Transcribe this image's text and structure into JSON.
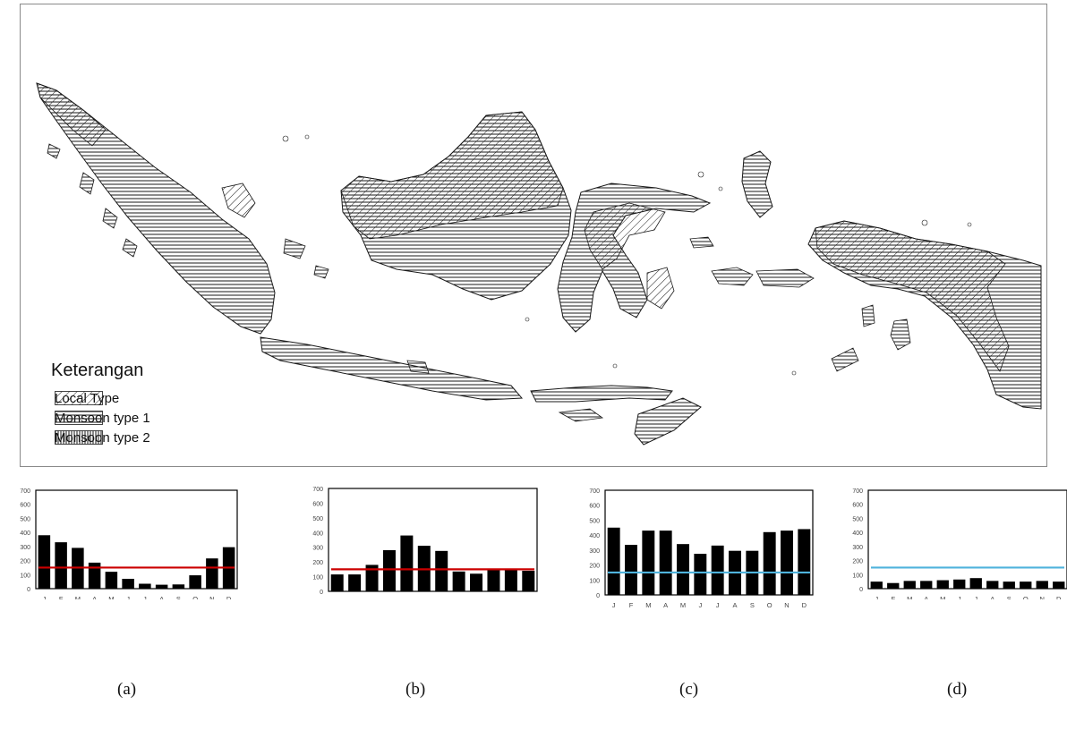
{
  "map": {
    "legend": {
      "title": "Keterangan",
      "items": [
        {
          "label": "Local Type",
          "pattern": "diagonal"
        },
        {
          "label": "Monsoon type 1",
          "pattern": "horizontal"
        },
        {
          "label": "Monsoon type 2",
          "pattern": "vertical"
        }
      ]
    }
  },
  "colors": {
    "bar": "#000000",
    "red_line": "#cc0000",
    "blue_line": "#4fb3dc",
    "map_ink": "#1a1a1a"
  },
  "chart_data": [
    {
      "type": "bar",
      "panel_label": "(a)",
      "categories": [
        "J",
        "F",
        "M",
        "A",
        "M",
        "J",
        "J",
        "A",
        "S",
        "O",
        "N",
        "D"
      ],
      "values": [
        380,
        330,
        290,
        185,
        120,
        70,
        35,
        28,
        30,
        95,
        215,
        295
      ],
      "threshold": 150,
      "threshold_color": "red",
      "ylim": [
        0,
        700
      ],
      "yticks": [
        "0",
        "100",
        "200",
        "300",
        "400",
        "500",
        "600",
        "700"
      ],
      "xlabel": "",
      "ylabel": ""
    },
    {
      "type": "bar",
      "panel_label": "(b)",
      "categories": [
        "J",
        "F",
        "M",
        "A",
        "M",
        "J",
        "J",
        "A",
        "S",
        "O",
        "N",
        "D"
      ],
      "values": [
        115,
        115,
        180,
        280,
        380,
        310,
        275,
        135,
        120,
        145,
        145,
        140
      ],
      "threshold": 150,
      "threshold_color": "red",
      "ylim": [
        0,
        700
      ],
      "yticks": [
        "0",
        "100",
        "200",
        "300",
        "400",
        "500",
        "600",
        "700"
      ],
      "xlabel": "",
      "ylabel": ""
    },
    {
      "type": "bar",
      "panel_label": "(c)",
      "categories": [
        "J",
        "F",
        "M",
        "A",
        "M",
        "J",
        "J",
        "A",
        "S",
        "O",
        "N",
        "D"
      ],
      "values": [
        450,
        335,
        430,
        430,
        340,
        275,
        330,
        295,
        295,
        420,
        430,
        440
      ],
      "threshold": 150,
      "threshold_color": "blue",
      "ylim": [
        0,
        700
      ],
      "yticks": [
        "0",
        "100",
        "200",
        "300",
        "400",
        "500",
        "600",
        "700"
      ],
      "xlabel": "",
      "ylabel": ""
    },
    {
      "type": "bar",
      "panel_label": "(d)",
      "categories": [
        "J",
        "F",
        "M",
        "A",
        "M",
        "J",
        "J",
        "A",
        "S",
        "O",
        "N",
        "D"
      ],
      "values": [
        50,
        40,
        55,
        55,
        60,
        65,
        75,
        55,
        50,
        50,
        55,
        50
      ],
      "threshold": 150,
      "threshold_color": "blue",
      "ylim": [
        0,
        700
      ],
      "yticks": [
        "0",
        "100",
        "200",
        "300",
        "400",
        "500",
        "600",
        "700"
      ],
      "xlabel": "",
      "ylabel": ""
    }
  ]
}
